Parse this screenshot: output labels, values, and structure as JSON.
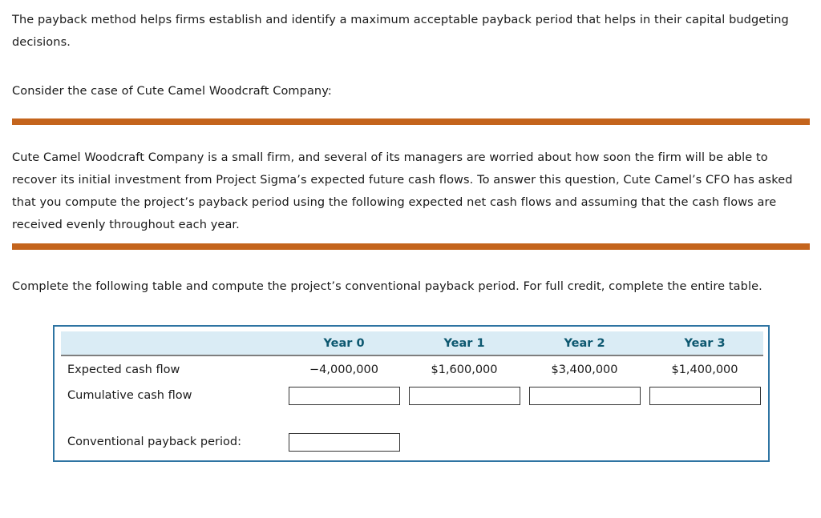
{
  "intro": {
    "description": "The payback method helps firms establish and identify a maximum acceptable payback period that helps in their capital budgeting decisions.",
    "consider": "Consider the case of Cute Camel Woodcraft Company:"
  },
  "case_description": "Cute Camel Woodcraft Company is a small firm, and several of its managers are worried about how soon the firm will be able to recover its initial investment from Project Sigma’s expected future cash flows. To answer this question, Cute Camel’s CFO has asked that you compute the project’s payback period using the following expected net cash flows and assuming that the cash flows are received evenly throughout each year.",
  "instruction": "Complete the following table and compute the project’s conventional payback period. For full credit, complete the entire table.",
  "table": {
    "columns": [
      "Year 0",
      "Year 1",
      "Year 2",
      "Year 3"
    ],
    "rows": [
      {
        "label": "Expected cash flow",
        "values": [
          "−4,000,000",
          "$1,600,000",
          "$3,400,000",
          "$1,400,000"
        ]
      },
      {
        "label": "Cumulative cash flow",
        "values": [
          "",
          "",
          "",
          ""
        ]
      }
    ],
    "payback_label": "Conventional payback period:",
    "payback_value": ""
  },
  "colors": {
    "divider_orange": "#c4641c",
    "table_border_blue": "#2e74a2",
    "header_background": "#daecf5",
    "header_text": "#0d5870"
  }
}
